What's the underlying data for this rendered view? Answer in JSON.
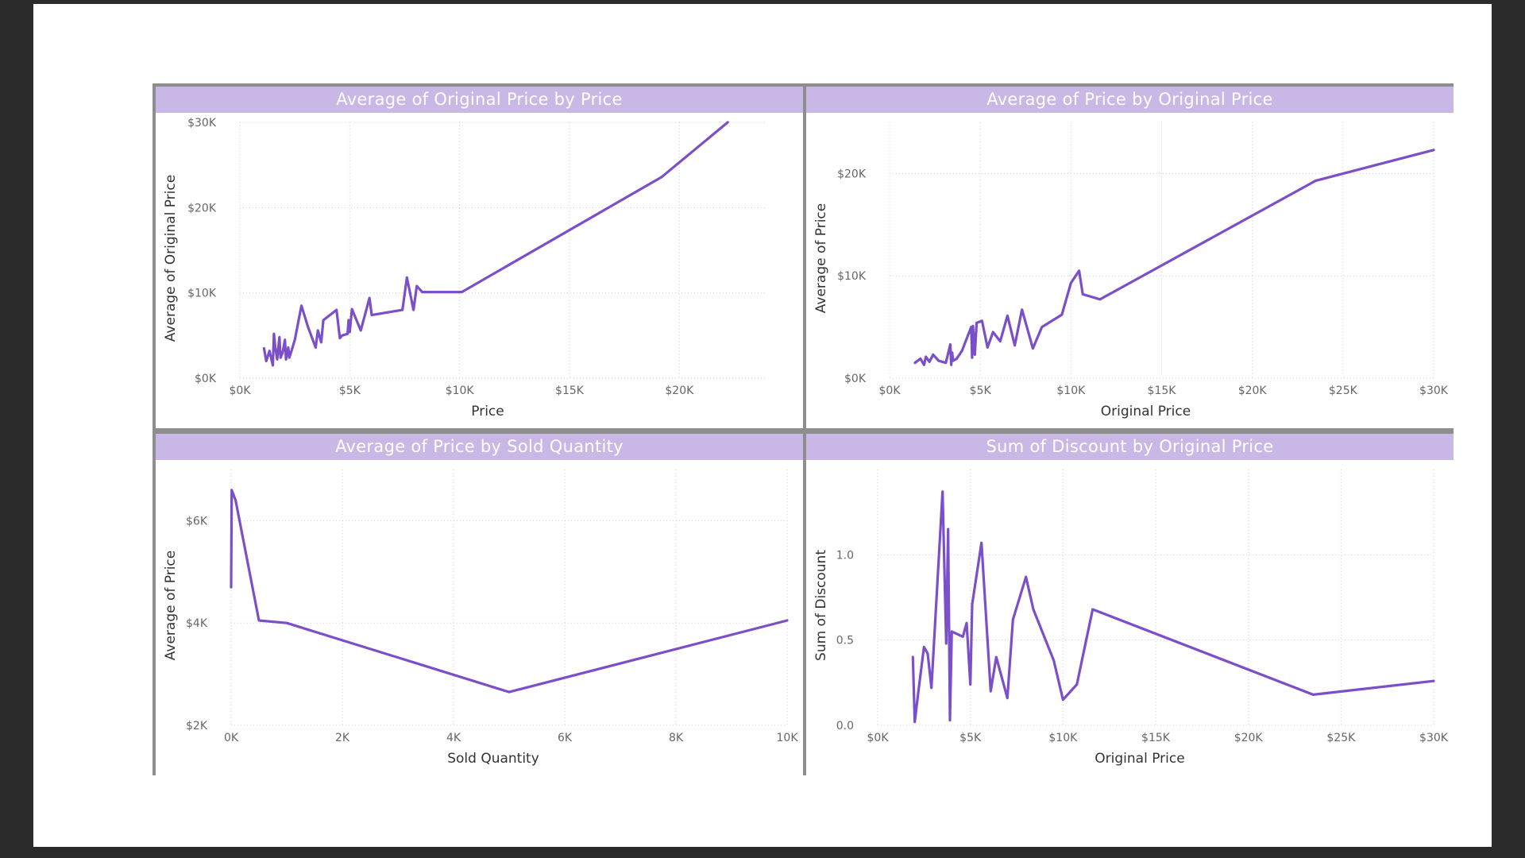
{
  "colors": {
    "line": "#7b4fc9",
    "title_bg": "#c9b8e6",
    "title_text": "#ffffff",
    "grid": "#cfcfcf",
    "tick_text": "#666666",
    "axis_title": "#333333",
    "border": "#8e8e8e",
    "background": "#2b2b2b"
  },
  "chart_data": [
    {
      "type": "line",
      "title": "Average of Original Price by Price",
      "xlabel": "Price",
      "ylabel": "Average of Original Price",
      "xlim": [
        0,
        24000
      ],
      "ylim": [
        0,
        30000
      ],
      "xticks": [
        0,
        5000,
        10000,
        15000,
        20000
      ],
      "xtick_labels": [
        "$0K",
        "$5K",
        "$10K",
        "$15K",
        "$20K"
      ],
      "yticks": [
        0,
        10000,
        20000,
        30000
      ],
      "ytick_labels": [
        "$0K",
        "$10K",
        "$20K",
        "$30K"
      ],
      "grid": true,
      "series": [
        {
          "x": [
            1100,
            1200,
            1350,
            1500,
            1550,
            1600,
            1700,
            1800,
            1850,
            1950,
            2050,
            2100,
            2200,
            2250,
            2350,
            2500,
            2800,
            3100,
            3450,
            3550,
            3700,
            3800,
            4400,
            4550,
            4650,
            4900,
            4950,
            5000,
            5100,
            5500,
            5900,
            6000,
            7400,
            7600,
            7900,
            8050,
            8300,
            10100,
            19200,
            22200
          ],
          "y": [
            3500,
            2000,
            3200,
            1500,
            5200,
            3800,
            2200,
            4800,
            2400,
            3000,
            4500,
            2200,
            3600,
            2400,
            3200,
            4500,
            8500,
            6000,
            3600,
            5600,
            4200,
            6800,
            8000,
            4700,
            5000,
            5200,
            6800,
            5400,
            8100,
            5600,
            9400,
            7400,
            8000,
            11800,
            8000,
            10800,
            10100,
            10100,
            23600,
            30000
          ]
        }
      ]
    },
    {
      "type": "line",
      "title": "Average of Price by Original Price",
      "xlabel": "Original Price",
      "ylabel": "Average of Price",
      "xlim": [
        0,
        30000
      ],
      "ylim": [
        0,
        25000
      ],
      "xticks": [
        0,
        5000,
        10000,
        15000,
        20000,
        25000,
        30000
      ],
      "xtick_labels": [
        "$0K",
        "$5K",
        "$10K",
        "$15K",
        "$20K",
        "$25K",
        "$30K"
      ],
      "yticks": [
        0,
        10000,
        20000
      ],
      "ytick_labels": [
        "$0K",
        "$10K",
        "$20K"
      ],
      "grid": true,
      "series": [
        {
          "x": [
            1400,
            1700,
            1900,
            2000,
            2200,
            2400,
            2700,
            3100,
            3350,
            3400,
            3450,
            3500,
            3700,
            4000,
            4500,
            4550,
            4600,
            4700,
            4800,
            5100,
            5400,
            5700,
            6100,
            6500,
            6900,
            7300,
            7900,
            8400,
            9500,
            10000,
            10450,
            10650,
            11600,
            23500,
            30000
          ],
          "y": [
            1500,
            1900,
            1300,
            2100,
            1600,
            2300,
            1700,
            1500,
            3300,
            1300,
            2500,
            1700,
            1900,
            2700,
            5000,
            2000,
            5100,
            2300,
            5400,
            5600,
            3000,
            4500,
            3600,
            6100,
            3200,
            6700,
            2900,
            5000,
            6200,
            9300,
            10500,
            8200,
            7700,
            19300,
            22300
          ]
        }
      ]
    },
    {
      "type": "line",
      "title": "Average of Price by Sold Quantity",
      "xlabel": "Sold Quantity",
      "ylabel": "Average of Price",
      "xlim": [
        0,
        10000
      ],
      "ylim": [
        2000,
        7000
      ],
      "xticks": [
        0,
        2000,
        4000,
        6000,
        8000,
        10000
      ],
      "xtick_labels": [
        "0K",
        "2K",
        "4K",
        "6K",
        "8K",
        "10K"
      ],
      "yticks": [
        2000,
        4000,
        6000
      ],
      "ytick_labels": [
        "$2K",
        "$4K",
        "$6K"
      ],
      "grid": true,
      "series": [
        {
          "x": [
            0,
            10,
            80,
            500,
            1000,
            5000,
            10000
          ],
          "y": [
            4700,
            6600,
            6400,
            4050,
            4000,
            2650,
            4050
          ]
        }
      ]
    },
    {
      "type": "line",
      "title": "Sum of Discount by Original Price",
      "xlabel": "Original Price",
      "ylabel": "Sum of Discount",
      "xlim": [
        0,
        30000
      ],
      "ylim": [
        0,
        1.5
      ],
      "xticks": [
        0,
        5000,
        10000,
        15000,
        20000,
        25000,
        30000
      ],
      "xtick_labels": [
        "$0K",
        "$5K",
        "$10K",
        "$15K",
        "$20K",
        "$25K",
        "$30K"
      ],
      "yticks": [
        0,
        0.5,
        1.0
      ],
      "ytick_labels": [
        "0.0",
        "0.5",
        "1.0"
      ],
      "grid": true,
      "series": [
        {
          "x": [
            1900,
            2000,
            2200,
            2500,
            2700,
            2900,
            3500,
            3700,
            3800,
            3900,
            4000,
            4600,
            4800,
            5000,
            5100,
            5600,
            6100,
            6400,
            7000,
            7300,
            8000,
            8400,
            9500,
            10000,
            10750,
            11600,
            23500,
            30000
          ],
          "y": [
            0.4,
            0.02,
            0.2,
            0.46,
            0.42,
            0.22,
            1.37,
            0.48,
            1.15,
            0.03,
            0.55,
            0.52,
            0.6,
            0.24,
            0.71,
            1.07,
            0.2,
            0.4,
            0.16,
            0.62,
            0.87,
            0.68,
            0.38,
            0.15,
            0.24,
            0.68,
            0.18,
            0.26
          ]
        }
      ]
    }
  ]
}
